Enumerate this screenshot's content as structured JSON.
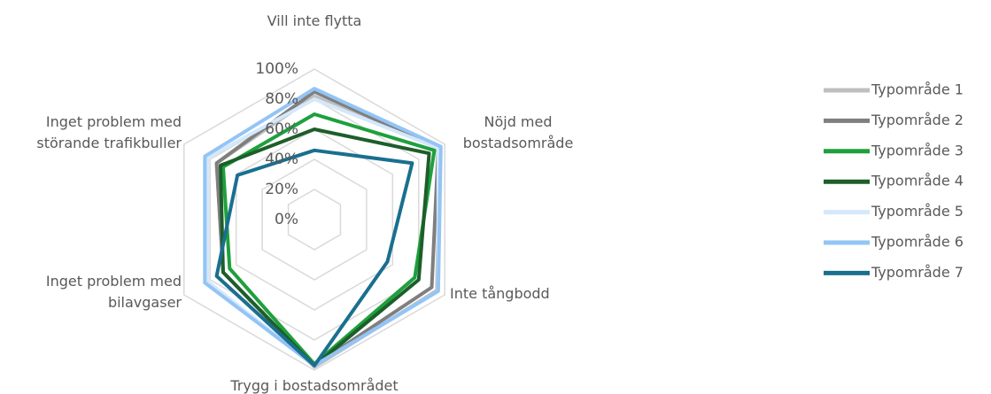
{
  "chart_data": {
    "type": "radar",
    "categories": [
      "Vill inte flytta",
      "Nöjd med\nbostadsområde",
      "Inte tångbodd",
      "Trygg i bostadsområdet",
      "Inget problem med\nbilavgaser",
      "Inget problem med\nstörande trafikbuller"
    ],
    "ylim": [
      0,
      100
    ],
    "yticks": [
      {
        "value": 0,
        "label": "0%"
      },
      {
        "value": 20,
        "label": "20%"
      },
      {
        "value": 40,
        "label": "40%"
      },
      {
        "value": 60,
        "label": "60%"
      },
      {
        "value": 80,
        "label": "80%"
      },
      {
        "value": 100,
        "label": "100%"
      }
    ],
    "grid": true,
    "legend": "right",
    "series": [
      {
        "name": "Typområde 1",
        "color": "#bfbfbf",
        "values": [
          82,
          96,
          94,
          98,
          70,
          75
        ]
      },
      {
        "name": "Typområde 2",
        "color": "#7f7f7f",
        "values": [
          85,
          95,
          90,
          97,
          70,
          75
        ]
      },
      {
        "name": "Typområde 3",
        "color": "#1ea03c",
        "values": [
          70,
          92,
          77,
          96,
          65,
          70
        ]
      },
      {
        "name": "Typområde 4",
        "color": "#1d5e2a",
        "values": [
          60,
          88,
          80,
          97,
          70,
          72
        ]
      },
      {
        "name": "Typområde 5",
        "color": "#d4e8fb",
        "values": [
          80,
          95,
          95,
          97,
          82,
          82
        ]
      },
      {
        "name": "Typområde 6",
        "color": "#93c4f5",
        "values": [
          87,
          97,
          95,
          97,
          84,
          84
        ]
      },
      {
        "name": "Typområde 7",
        "color": "#1a6f8f",
        "values": [
          46,
          75,
          56,
          97,
          75,
          59
        ]
      }
    ]
  }
}
